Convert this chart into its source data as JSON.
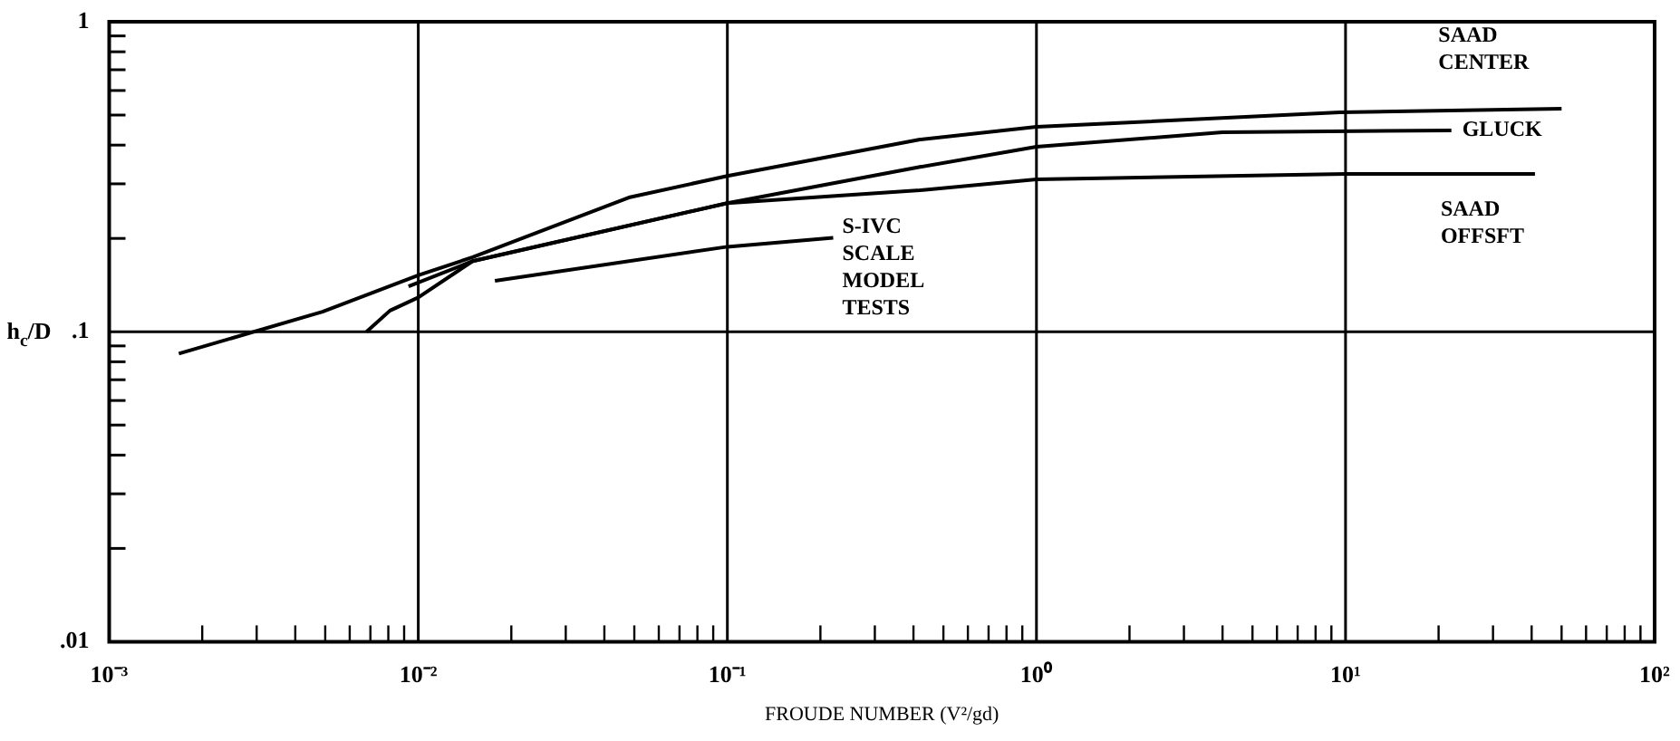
{
  "chart_data": {
    "type": "line",
    "xlabel": "FROUDE NUMBER (V²/gd)",
    "ylabel": "h$_{c}$/D",
    "log": "xy",
    "grid": true,
    "legend": false,
    "marker": "none",
    "line_style": "solid",
    "xlim": [
      0.001,
      100
    ],
    "ylim": [
      0.01,
      1
    ],
    "xticks": [
      {
        "value": 0.001,
        "label": "10⁻³"
      },
      {
        "value": 0.002,
        "label": null
      },
      {
        "value": 0.003,
        "label": null
      },
      {
        "value": 0.004,
        "label": null
      },
      {
        "value": 0.005,
        "label": null
      },
      {
        "value": 0.006,
        "label": null
      },
      {
        "value": 0.007,
        "label": null
      },
      {
        "value": 0.008,
        "label": null
      },
      {
        "value": 0.009,
        "label": null
      },
      {
        "value": 0.01,
        "label": "10⁻²"
      },
      {
        "value": 0.02,
        "label": null
      },
      {
        "value": 0.03,
        "label": null
      },
      {
        "value": 0.04,
        "label": null
      },
      {
        "value": 0.05,
        "label": null
      },
      {
        "value": 0.06,
        "label": null
      },
      {
        "value": 0.07,
        "label": null
      },
      {
        "value": 0.08,
        "label": null
      },
      {
        "value": 0.09,
        "label": null
      },
      {
        "value": 0.1,
        "label": "10⁻¹"
      },
      {
        "value": 0.2,
        "label": null
      },
      {
        "value": 0.3,
        "label": null
      },
      {
        "value": 0.4,
        "label": null
      },
      {
        "value": 0.5,
        "label": null
      },
      {
        "value": 0.6,
        "label": null
      },
      {
        "value": 0.7,
        "label": null
      },
      {
        "value": 0.8,
        "label": null
      },
      {
        "value": 0.9,
        "label": null
      },
      {
        "value": 1,
        "label": "10⁰"
      },
      {
        "value": 2,
        "label": null
      },
      {
        "value": 3,
        "label": null
      },
      {
        "value": 4,
        "label": null
      },
      {
        "value": 5,
        "label": null
      },
      {
        "value": 6,
        "label": null
      },
      {
        "value": 7,
        "label": null
      },
      {
        "value": 8,
        "label": null
      },
      {
        "value": 9,
        "label": null
      },
      {
        "value": 10,
        "label": "10¹"
      },
      {
        "value": 20,
        "label": null
      },
      {
        "value": 30,
        "label": null
      },
      {
        "value": 40,
        "label": null
      },
      {
        "value": 50,
        "label": null
      },
      {
        "value": 60,
        "label": null
      },
      {
        "value": 70,
        "label": null
      },
      {
        "value": 80,
        "label": null
      },
      {
        "value": 90,
        "label": null
      },
      {
        "value": 100,
        "label": "10²"
      }
    ],
    "yticks": [
      {
        "value": 0.01,
        "label": ".01"
      },
      {
        "value": 0.02,
        "label": null
      },
      {
        "value": 0.03,
        "label": null
      },
      {
        "value": 0.04,
        "label": null
      },
      {
        "value": 0.05,
        "label": null
      },
      {
        "value": 0.06,
        "label": null
      },
      {
        "value": 0.07,
        "label": null
      },
      {
        "value": 0.08,
        "label": null
      },
      {
        "value": 0.09,
        "label": null
      },
      {
        "value": 0.1,
        "label": ".1"
      },
      {
        "value": 0.2,
        "label": null
      },
      {
        "value": 0.3,
        "label": null
      },
      {
        "value": 0.4,
        "label": null
      },
      {
        "value": 0.5,
        "label": null
      },
      {
        "value": 0.6,
        "label": null
      },
      {
        "value": 0.7,
        "label": null
      },
      {
        "value": 0.8,
        "label": null
      },
      {
        "value": 0.9,
        "label": null
      },
      {
        "value": 1,
        "label": "1"
      }
    ],
    "series": [
      {
        "name": "SAAD\nCENTER",
        "color": "#000000",
        "x": [
          0.00168,
          0.0049,
          0.01,
          0.015,
          0.048,
          0.1,
          0.42,
          1,
          9.6,
          50
        ],
        "values": [
          0.085,
          0.116,
          0.152,
          0.174,
          0.271,
          0.318,
          0.417,
          0.458,
          0.51,
          0.524
        ]
      },
      {
        "name": "GLUCK",
        "color": "#000000",
        "x": [
          0.0068,
          0.0081,
          0.01,
          0.015,
          0.1,
          0.42,
          1,
          4,
          22
        ],
        "values": [
          0.1,
          0.117,
          0.129,
          0.169,
          0.26,
          0.34,
          0.395,
          0.44,
          0.446
        ]
      },
      {
        "name": "SAAD\nOFFSFT",
        "color": "#000000",
        "x": [
          0.0093,
          0.015,
          0.1,
          0.42,
          1,
          10,
          41
        ],
        "values": [
          0.14,
          0.169,
          0.26,
          0.286,
          0.31,
          0.323,
          0.323
        ]
      },
      {
        "name": "S-IVC\nSCALE\nMODEL\nTESTS",
        "color": "#000000",
        "x": [
          0.0177,
          0.1,
          0.22
        ],
        "values": [
          0.146,
          0.188,
          0.201
        ]
      }
    ]
  }
}
